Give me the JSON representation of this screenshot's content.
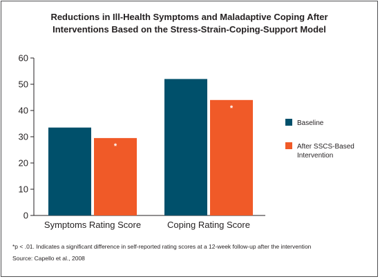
{
  "chart_data": {
    "type": "bar",
    "title_lines": [
      "Reductions in Ill-Health Symptoms and Maladaptive Coping After",
      "Interventions Based on the Stress-Strain-Coping-Support Model"
    ],
    "categories": [
      "Symptoms Rating Score",
      "Coping Rating Score"
    ],
    "series": [
      {
        "name": "Baseline",
        "values": [
          33.5,
          52
        ],
        "color": "#00506b"
      },
      {
        "name_lines": [
          "After SSCS-Based",
          "Intervention"
        ],
        "values": [
          29.5,
          44
        ],
        "color": "#f05a28"
      }
    ],
    "annotations": [
      [
        null,
        "*"
      ],
      [
        null,
        "*"
      ]
    ],
    "ylim": [
      0,
      60
    ],
    "yticks": [
      0,
      10,
      20,
      30,
      40,
      50,
      60
    ],
    "grid": false,
    "legend_position": "right"
  },
  "footnotes": [
    "*p < .01. Indicates a significant difference in self-reported rating scores at a 12-week follow-up after the intervention",
    "Source: Capello et al., 2008"
  ]
}
